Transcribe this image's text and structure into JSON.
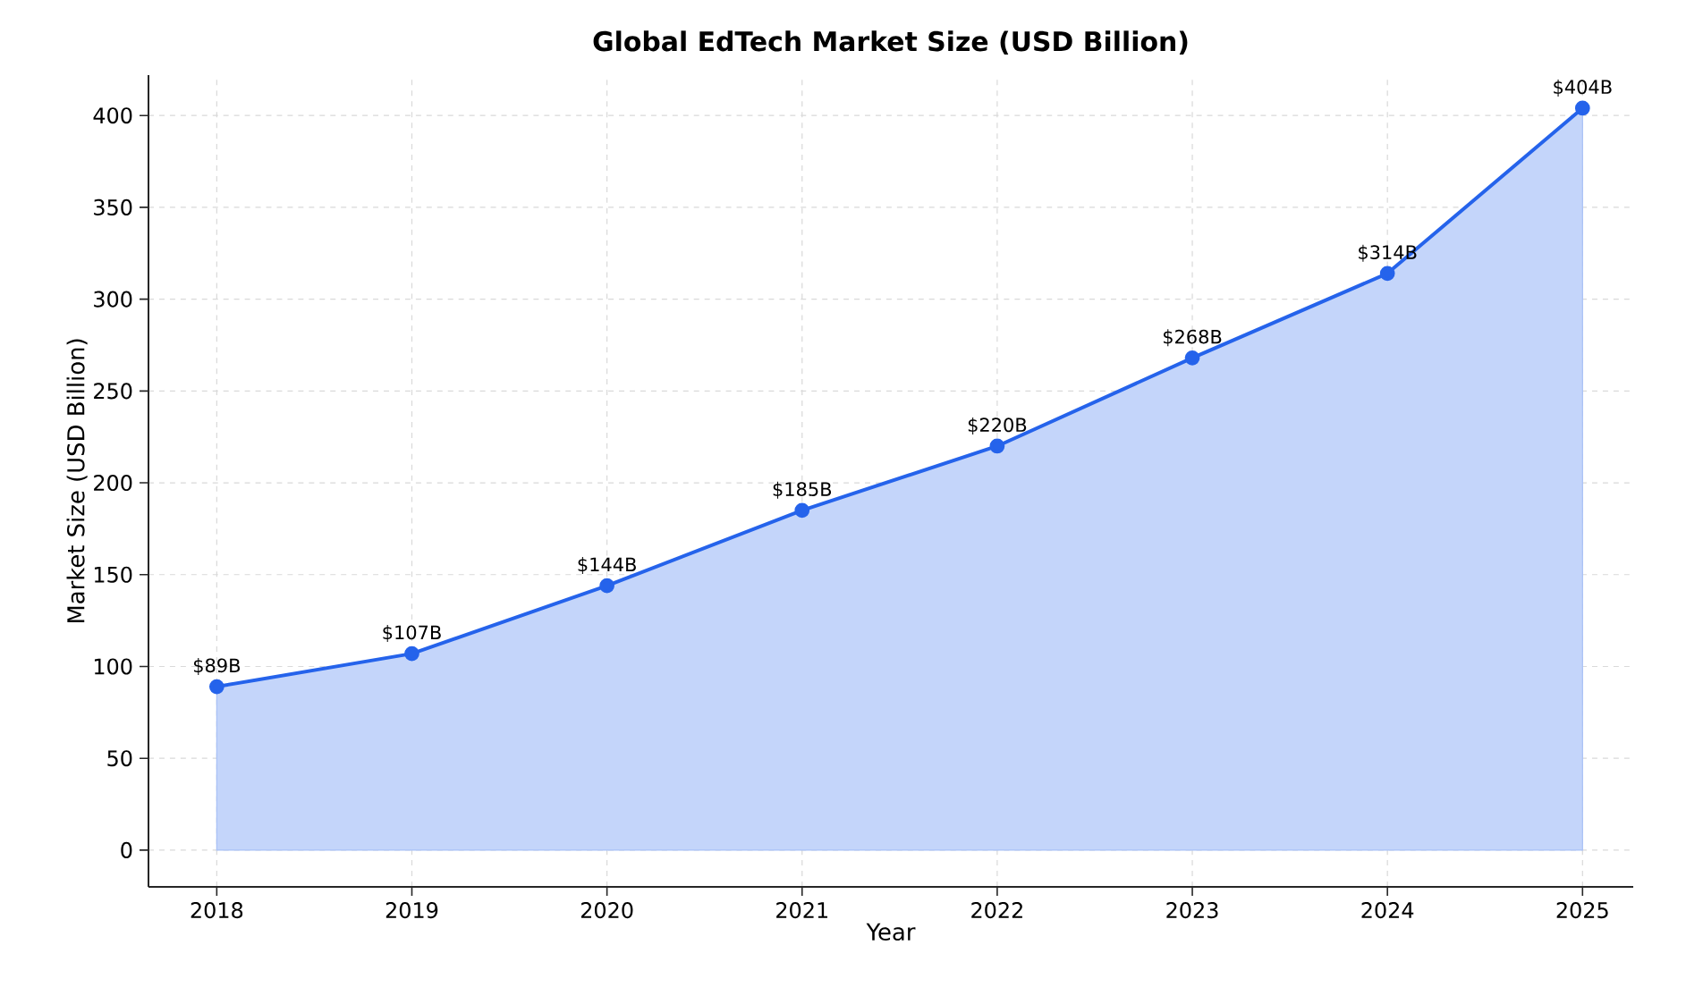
{
  "chart_data": {
    "type": "area",
    "title": "Global EdTech Market Size (USD Billion)",
    "xlabel": "Year",
    "ylabel": "Market Size (USD Billion)",
    "x": [
      2018,
      2019,
      2020,
      2021,
      2022,
      2023,
      2024,
      2025
    ],
    "series": [
      {
        "color": "#2563eb",
        "values": [
          89,
          107,
          144,
          185,
          220,
          268,
          314,
          404
        ],
        "value_labels": [
          "$89B",
          "$107B",
          "$144B",
          "$185B",
          "$220B",
          "$268B",
          "$314B",
          "$404B"
        ]
      }
    ],
    "xlim": [
      2017.65,
      2025.26
    ],
    "ylim": [
      -20,
      422
    ],
    "xticks": [
      2018,
      2019,
      2020,
      2021,
      2022,
      2023,
      2024,
      2025
    ],
    "yticks": [
      0,
      50,
      100,
      150,
      200,
      250,
      300,
      350,
      400
    ],
    "grid": true,
    "marker": "circle",
    "line_style": "solid"
  }
}
